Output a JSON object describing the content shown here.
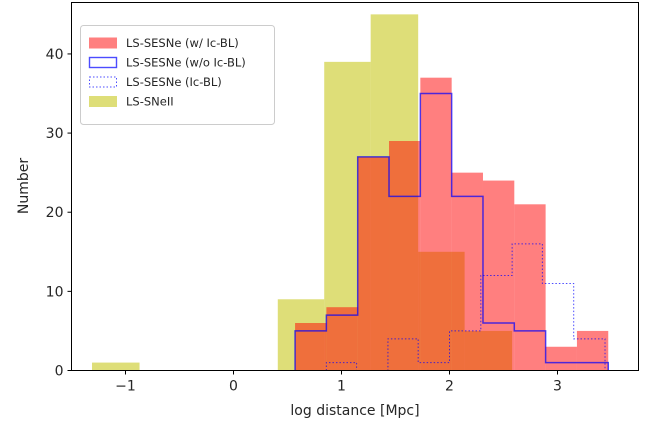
{
  "chart_data": {
    "type": "histogram",
    "title": "",
    "xlabel": "log distance [Mpc]",
    "ylabel": "Number",
    "xlim": [
      -1.5,
      3.75
    ],
    "ylim": [
      0,
      46.5
    ],
    "x_ticks": [
      -1,
      0,
      1,
      2,
      3
    ],
    "x_tick_labels": [
      "−1",
      "0",
      "1",
      "2",
      "3"
    ],
    "y_ticks": [
      0,
      10,
      20,
      30,
      40
    ],
    "y_tick_labels": [
      "0",
      "10",
      "20",
      "30",
      "40"
    ],
    "legend_position": "upper-left",
    "series": [
      {
        "name": "LS-SNeII",
        "style": "filled",
        "color": "#c8c81e",
        "opacity": 0.6,
        "bins": [
          {
            "x0": -1.31,
            "x1": -0.87,
            "value": 1
          },
          {
            "x0": 0.41,
            "x1": 0.84,
            "value": 9
          },
          {
            "x0": 0.84,
            "x1": 1.27,
            "value": 39
          },
          {
            "x0": 1.27,
            "x1": 1.71,
            "value": 45
          },
          {
            "x0": 1.71,
            "x1": 2.14,
            "value": 15
          },
          {
            "x0": 2.14,
            "x1": 2.58,
            "value": 5
          }
        ]
      },
      {
        "name": "LS-SESNe (w/ Ic-BL)",
        "style": "filled",
        "color": "#ff0000",
        "opacity": 0.5,
        "bins": [
          {
            "x0": 0.57,
            "x1": 0.86,
            "value": 6
          },
          {
            "x0": 0.86,
            "x1": 1.15,
            "value": 8
          },
          {
            "x0": 1.15,
            "x1": 1.44,
            "value": 27
          },
          {
            "x0": 1.44,
            "x1": 1.73,
            "value": 29
          },
          {
            "x0": 1.73,
            "x1": 2.02,
            "value": 37
          },
          {
            "x0": 2.02,
            "x1": 2.31,
            "value": 25
          },
          {
            "x0": 2.31,
            "x1": 2.6,
            "value": 24
          },
          {
            "x0": 2.6,
            "x1": 2.89,
            "value": 21
          },
          {
            "x0": 2.89,
            "x1": 3.18,
            "value": 3
          },
          {
            "x0": 3.18,
            "x1": 3.47,
            "value": 5
          }
        ]
      },
      {
        "name": "LS-SESNe (w/o Ic-BL)",
        "style": "step",
        "color": "#0000ff",
        "opacity": 0.7,
        "bins": [
          {
            "x0": 0.57,
            "x1": 0.86,
            "value": 5
          },
          {
            "x0": 0.86,
            "x1": 1.15,
            "value": 7
          },
          {
            "x0": 1.15,
            "x1": 1.44,
            "value": 27
          },
          {
            "x0": 1.44,
            "x1": 1.73,
            "value": 22
          },
          {
            "x0": 1.73,
            "x1": 2.02,
            "value": 35
          },
          {
            "x0": 2.02,
            "x1": 2.31,
            "value": 22
          },
          {
            "x0": 2.31,
            "x1": 2.6,
            "value": 6
          },
          {
            "x0": 2.6,
            "x1": 2.89,
            "value": 5
          },
          {
            "x0": 2.89,
            "x1": 3.18,
            "value": 1
          },
          {
            "x0": 3.18,
            "x1": 3.47,
            "value": 1
          }
        ]
      },
      {
        "name": "LS-SESNe (Ic-BL)",
        "style": "step-dotted",
        "color": "#0000ff",
        "opacity": 0.7,
        "bins": [
          {
            "x0": 0.86,
            "x1": 1.14,
            "value": 1
          },
          {
            "x0": 1.14,
            "x1": 1.43,
            "value": 0
          },
          {
            "x0": 1.43,
            "x1": 1.71,
            "value": 4
          },
          {
            "x0": 1.71,
            "x1": 2.0,
            "value": 1
          },
          {
            "x0": 2.0,
            "x1": 2.29,
            "value": 5
          },
          {
            "x0": 2.29,
            "x1": 2.58,
            "value": 12
          },
          {
            "x0": 2.58,
            "x1": 2.86,
            "value": 16
          },
          {
            "x0": 2.86,
            "x1": 3.15,
            "value": 11
          },
          {
            "x0": 3.15,
            "x1": 3.44,
            "value": 4
          }
        ]
      }
    ],
    "legend": [
      {
        "label": "LS-SESNe (w/ Ic-BL)",
        "swatch": "filled",
        "color": "#ff0000",
        "opacity": 0.5
      },
      {
        "label": "LS-SESNe (w/o Ic-BL)",
        "swatch": "outline",
        "color": "#0000ff",
        "opacity": 0.7
      },
      {
        "label": "LS-SESNe (Ic-BL)",
        "swatch": "outline-dotted",
        "color": "#0000ff",
        "opacity": 0.7
      },
      {
        "label": "LS-SNeII",
        "swatch": "filled",
        "color": "#c8c81e",
        "opacity": 0.6
      }
    ]
  }
}
